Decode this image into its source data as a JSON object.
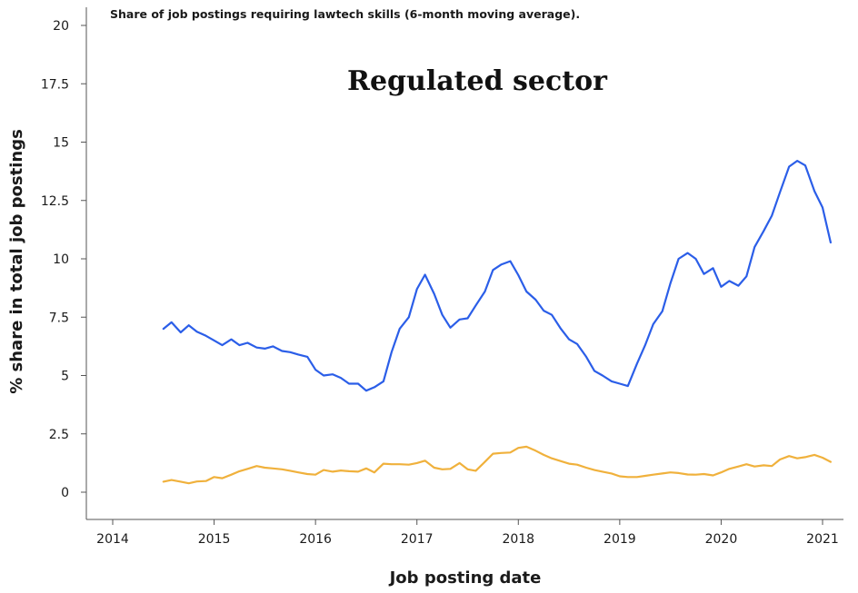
{
  "chart_data": {
    "type": "line",
    "subtitle": "Share of job postings requiring lawtech skills (6-month moving average).",
    "title": "Regulated sector",
    "xlabel": "Job posting date",
    "ylabel": "% share in total job postings",
    "xlim": [
      2014.0,
      2021.1
    ],
    "ylim": [
      0,
      20
    ],
    "x_ticks": [
      2014,
      2015,
      2016,
      2017,
      2018,
      2019,
      2020,
      2021
    ],
    "x_tick_labels": [
      "2014",
      "2015",
      "2016",
      "2017",
      "2018",
      "2019",
      "2020",
      "2021"
    ],
    "y_ticks": [
      0,
      2.5,
      5,
      7.5,
      10,
      12.5,
      15,
      17.5,
      20
    ],
    "y_tick_labels": [
      "0",
      "2.5",
      "5",
      "7.5",
      "10",
      "12.5",
      "15",
      "17.5",
      "20"
    ],
    "grid": false,
    "legend": "none",
    "x": [
      2014.5,
      2014.58,
      2014.67,
      2014.75,
      2014.83,
      2014.92,
      2015.0,
      2015.08,
      2015.17,
      2015.25,
      2015.33,
      2015.42,
      2015.5,
      2015.58,
      2015.67,
      2015.75,
      2015.83,
      2015.92,
      2016.0,
      2016.08,
      2016.17,
      2016.25,
      2016.33,
      2016.42,
      2016.5,
      2016.58,
      2016.67,
      2016.75,
      2016.83,
      2016.92,
      2017.0,
      2017.08,
      2017.17,
      2017.25,
      2017.33,
      2017.42,
      2017.5,
      2017.58,
      2017.67,
      2017.75,
      2017.83,
      2017.92,
      2018.0,
      2018.08,
      2018.17,
      2018.25,
      2018.33,
      2018.42,
      2018.5,
      2018.58,
      2018.67,
      2018.75,
      2018.83,
      2018.92,
      2019.0,
      2019.08,
      2019.17,
      2019.25,
      2019.33,
      2019.42,
      2019.5,
      2019.58,
      2019.67,
      2019.75,
      2019.83,
      2019.92,
      2020.0,
      2020.08,
      2020.17,
      2020.25,
      2020.33,
      2020.42,
      2020.5,
      2020.58,
      2020.67,
      2020.75,
      2020.83,
      2020.92,
      2021.0,
      2021.08
    ],
    "series": [
      {
        "color": "#2b5ee8",
        "values": [
          7.0,
          7.28,
          6.85,
          7.15,
          6.88,
          6.7,
          6.5,
          6.3,
          6.55,
          6.3,
          6.4,
          6.2,
          6.15,
          6.25,
          6.05,
          6.0,
          5.9,
          5.8,
          5.25,
          5.0,
          5.05,
          4.9,
          4.65,
          4.65,
          4.35,
          4.5,
          4.75,
          6.0,
          7.0,
          7.5,
          8.7,
          9.32,
          8.5,
          7.6,
          7.05,
          7.4,
          7.45,
          8.0,
          8.6,
          9.52,
          9.75,
          9.9,
          9.3,
          8.6,
          8.25,
          7.78,
          7.6,
          7.0,
          6.55,
          6.35,
          5.8,
          5.2,
          5.0,
          4.75,
          4.65,
          4.55,
          5.5,
          6.3,
          7.2,
          7.75,
          8.95,
          10.0,
          10.25,
          10.0,
          9.35,
          9.6,
          8.8,
          9.05,
          8.85,
          9.25,
          10.5,
          11.2,
          11.85,
          12.85,
          13.95,
          14.2,
          14.0,
          12.9,
          12.2,
          10.7
        ]
      },
      {
        "color": "#f0b13c",
        "values": [
          0.45,
          0.52,
          0.45,
          0.38,
          0.46,
          0.48,
          0.65,
          0.6,
          0.75,
          0.9,
          1.0,
          1.12,
          1.05,
          1.02,
          0.98,
          0.92,
          0.85,
          0.78,
          0.75,
          0.95,
          0.88,
          0.93,
          0.9,
          0.88,
          1.02,
          0.85,
          1.22,
          1.2,
          1.2,
          1.18,
          1.25,
          1.35,
          1.05,
          0.98,
          1.0,
          1.25,
          0.98,
          0.92,
          1.3,
          1.65,
          1.68,
          1.7,
          1.9,
          1.95,
          1.78,
          1.6,
          1.45,
          1.33,
          1.22,
          1.18,
          1.05,
          0.95,
          0.88,
          0.8,
          0.68,
          0.65,
          0.65,
          0.7,
          0.75,
          0.8,
          0.85,
          0.82,
          0.76,
          0.75,
          0.78,
          0.72,
          0.85,
          1.0,
          1.1,
          1.2,
          1.1,
          1.15,
          1.12,
          1.4,
          1.55,
          1.45,
          1.5,
          1.6,
          1.48,
          1.3
        ]
      }
    ]
  }
}
